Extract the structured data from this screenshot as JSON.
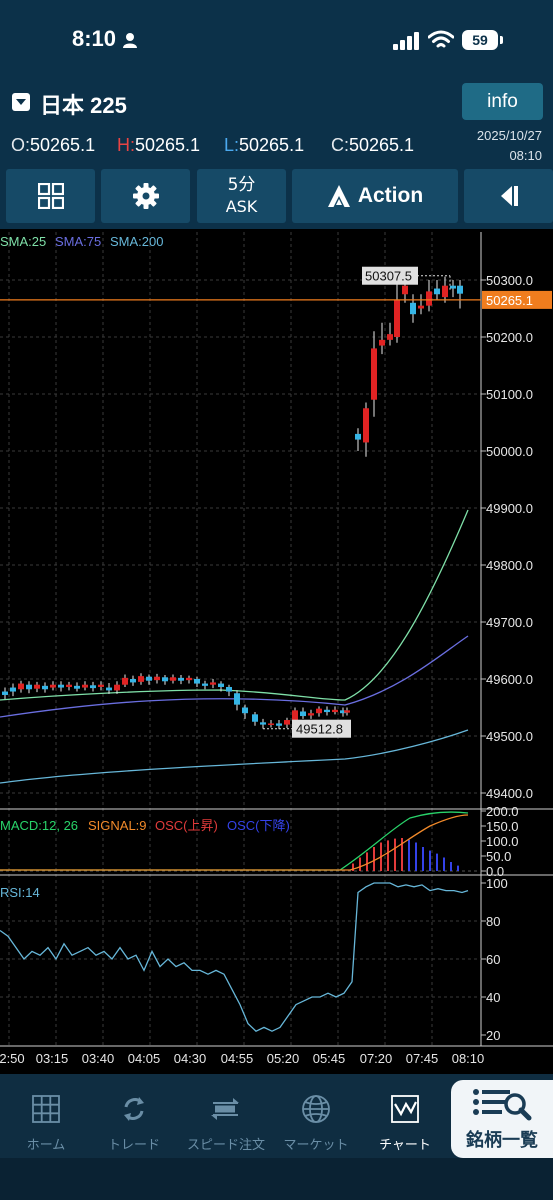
{
  "status": {
    "time": "8:10",
    "battery": "59"
  },
  "header": {
    "symbol": "日本 225",
    "info_label": "info",
    "ohlc": {
      "o_key": "O:",
      "o": "50265.1",
      "h_key": "H:",
      "h": "50265.1",
      "l_key": "L:",
      "l": "50265.1",
      "c_key": "C:",
      "c": "50265.1"
    },
    "date": "2025/10/27",
    "time": "08:10"
  },
  "toolbar": {
    "timeframe": "5分",
    "price_type": "ASK",
    "action_label": "Action"
  },
  "indicators": {
    "sma": [
      "SMA:25",
      "SMA:75",
      "SMA:200"
    ],
    "macd_legend": [
      "MACD:12, 26",
      "SIGNAL:9",
      "OSC(上昇)",
      "OSC(下降)"
    ],
    "rsi_legend": "RSI:14"
  },
  "colors": {
    "up": "#e02323",
    "down": "#35b5e6",
    "current_price": "#f07d1e",
    "sma25": "#7fe0a8",
    "sma75": "#6a6ee0",
    "sma200": "#67b7d9"
  },
  "price_axis": [
    "50300.0",
    "50200.0",
    "50100.0",
    "50000.0",
    "49900.0",
    "49800.0",
    "49700.0",
    "49600.0",
    "49500.0",
    "49400.0"
  ],
  "current_price_label": "50265.1",
  "high_label": "50307.5",
  "low_label": "49512.8",
  "macd_axis": [
    "200.0",
    "150.0",
    "100.0",
    "50.0",
    "0.0"
  ],
  "rsi_axis": [
    "100",
    "80",
    "60",
    "40",
    "20"
  ],
  "time_axis": [
    "2:50",
    "03:15",
    "03:40",
    "04:05",
    "04:30",
    "04:55",
    "05:20",
    "05:45",
    "07:20",
    "07:45",
    "08:10"
  ],
  "tabs": [
    {
      "label": "ホーム",
      "icon": "home-grid-icon"
    },
    {
      "label": "トレード",
      "icon": "trade-arrows-icon"
    },
    {
      "label": "スピード注文",
      "icon": "speed-icon"
    },
    {
      "label": "マーケット",
      "icon": "globe-icon"
    },
    {
      "label": "チャート",
      "icon": "chart-icon"
    }
  ],
  "symbol_list_label": "銘柄一覧"
}
